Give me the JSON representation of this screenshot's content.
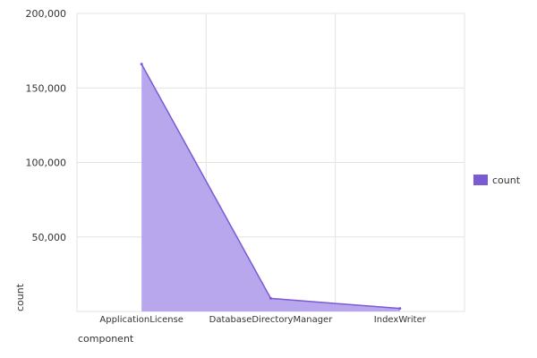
{
  "chart_data": {
    "type": "area",
    "categories": [
      "ApplicationLicense",
      "DatabaseDirectoryManager",
      "IndexWriter"
    ],
    "series": [
      {
        "name": "count",
        "values": [
          166000,
          8800,
          2000
        ],
        "color": "#7b5ad6",
        "fill": "#b4a2ec"
      }
    ],
    "y_ticks": [
      50000,
      100000,
      150000,
      200000
    ],
    "y_tick_labels": [
      "50,000",
      "100,000",
      "150,000",
      "200,000"
    ],
    "ylim": [
      0,
      200000
    ],
    "xlabel": "component",
    "ylabel": "count",
    "grid": true,
    "legend": {
      "position": "right",
      "label": "count"
    }
  }
}
